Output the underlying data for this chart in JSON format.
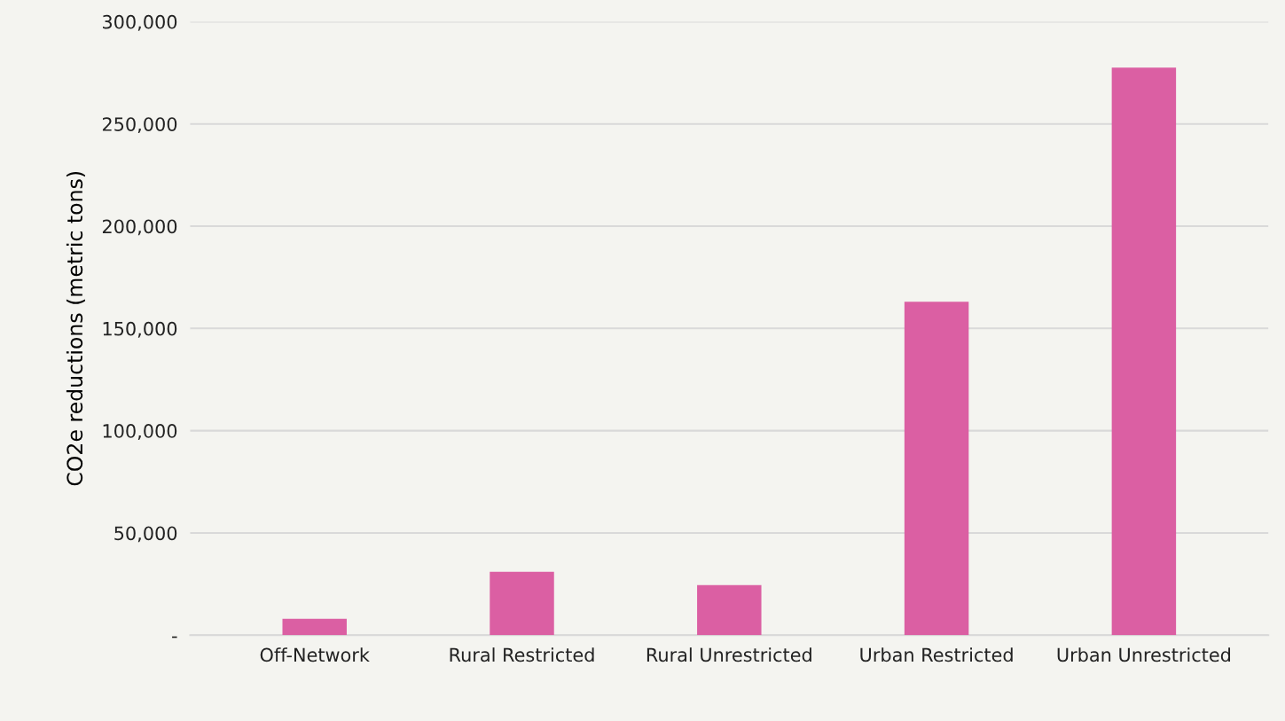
{
  "chart_data": {
    "type": "bar",
    "ylabel": "CO2e reductions (metric tons)",
    "categories": [
      "Off-Network",
      "Rural Restricted",
      "Rural Unrestricted",
      "Urban Restricted",
      "Urban Unrestricted"
    ],
    "values": [
      8000,
      31000,
      24500,
      163000,
      277500
    ],
    "color": "#db5fa3",
    "ylim": [
      0,
      300000
    ],
    "yticks": [
      {
        "value": 0,
        "label": "-"
      },
      {
        "value": 50000,
        "label": "50,000"
      },
      {
        "value": 100000,
        "label": "100,000"
      },
      {
        "value": 150000,
        "label": "150,000"
      },
      {
        "value": 200000,
        "label": "200,000"
      },
      {
        "value": 250000,
        "label": "250,000"
      },
      {
        "value": 300000,
        "label": "300,000"
      }
    ],
    "grid": "y"
  }
}
